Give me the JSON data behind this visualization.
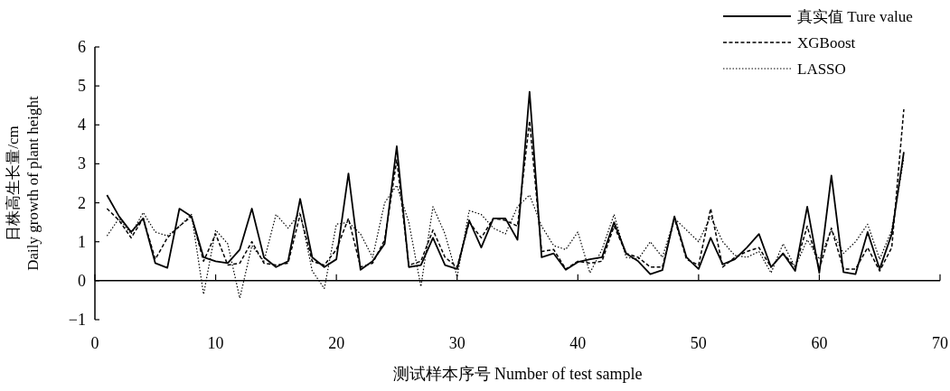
{
  "chart_data": {
    "type": "line",
    "xlabel": "测试样本序号 Number of test sample",
    "ylabel": "日株高生长量/cm\nDaily growth of plant height",
    "x": [
      1,
      2,
      3,
      4,
      5,
      6,
      7,
      8,
      9,
      10,
      11,
      12,
      13,
      14,
      15,
      16,
      17,
      18,
      19,
      20,
      21,
      22,
      23,
      24,
      25,
      26,
      27,
      28,
      29,
      30,
      31,
      32,
      33,
      34,
      35,
      36,
      37,
      38,
      39,
      40,
      41,
      42,
      43,
      44,
      45,
      46,
      47,
      48,
      49,
      50,
      51,
      52,
      53,
      54,
      55,
      56,
      57,
      58,
      59,
      60,
      61,
      62,
      63,
      64,
      65,
      66,
      67
    ],
    "xlim": [
      0,
      70
    ],
    "xticks": [
      0,
      10,
      20,
      30,
      40,
      50,
      60,
      70
    ],
    "ylim": [
      -1,
      6
    ],
    "yticks": [
      {
        "value": -1,
        "label": "−1"
      },
      0,
      1,
      2,
      3,
      4,
      5,
      6
    ],
    "legend": "top right",
    "marker": "none",
    "series": [
      {
        "name": "真实值 Ture value",
        "color": "#000000",
        "line_style": "solid",
        "values": [
          2.2,
          1.65,
          1.25,
          1.6,
          0.45,
          0.33,
          1.85,
          1.65,
          0.6,
          0.5,
          0.45,
          0.8,
          1.85,
          0.6,
          0.35,
          0.5,
          2.1,
          0.6,
          0.35,
          0.55,
          2.75,
          0.28,
          0.5,
          0.95,
          3.45,
          0.35,
          0.4,
          1.1,
          0.4,
          0.3,
          1.55,
          0.85,
          1.6,
          1.6,
          1.05,
          4.85,
          0.6,
          0.7,
          0.28,
          0.48,
          0.55,
          0.6,
          1.5,
          0.7,
          0.5,
          0.17,
          0.27,
          1.65,
          0.6,
          0.3,
          1.1,
          0.42,
          0.55,
          0.85,
          1.2,
          0.35,
          0.7,
          0.25,
          1.9,
          0.2,
          2.7,
          0.22,
          0.17,
          1.25,
          0.3,
          1.2,
          3.3
        ]
      },
      {
        "name": "XGBoost",
        "color": "#000000",
        "line_style": "dashed",
        "values": [
          1.85,
          1.55,
          1.1,
          1.6,
          0.55,
          1.1,
          1.4,
          1.65,
          0.5,
          1.2,
          0.4,
          0.45,
          1.0,
          0.45,
          0.4,
          0.45,
          1.7,
          0.5,
          0.4,
          0.8,
          1.6,
          0.35,
          0.45,
          1.05,
          3.1,
          0.4,
          0.5,
          1.3,
          0.6,
          0.35,
          1.5,
          1.1,
          1.6,
          1.55,
          1.4,
          4.1,
          0.75,
          0.8,
          0.3,
          0.5,
          0.45,
          0.5,
          1.4,
          0.7,
          0.6,
          0.35,
          0.35,
          1.6,
          0.55,
          0.4,
          1.85,
          0.35,
          0.6,
          0.75,
          0.85,
          0.35,
          0.7,
          0.35,
          1.4,
          0.3,
          1.35,
          0.3,
          0.3,
          0.85,
          0.25,
          0.85,
          4.4
        ]
      },
      {
        "name": "LASSO",
        "color": "#000000",
        "line_style": "dotted",
        "values": [
          1.15,
          1.6,
          1.2,
          1.75,
          1.25,
          1.15,
          1.4,
          1.7,
          -0.35,
          1.3,
          0.95,
          -0.45,
          0.9,
          0.5,
          1.7,
          1.35,
          1.75,
          0.25,
          -0.2,
          1.45,
          1.5,
          1.2,
          0.6,
          2.0,
          2.45,
          1.5,
          -0.15,
          1.9,
          1.2,
          0.1,
          1.8,
          1.7,
          1.35,
          1.2,
          1.9,
          2.2,
          1.4,
          0.9,
          0.8,
          1.25,
          0.2,
          0.8,
          1.7,
          0.6,
          0.55,
          1.0,
          0.6,
          1.6,
          1.3,
          1.0,
          1.65,
          1.0,
          0.65,
          0.6,
          0.75,
          0.2,
          0.95,
          0.35,
          1.05,
          0.55,
          1.3,
          0.7,
          1.0,
          1.45,
          0.55,
          1.3,
          3.15
        ]
      }
    ]
  }
}
